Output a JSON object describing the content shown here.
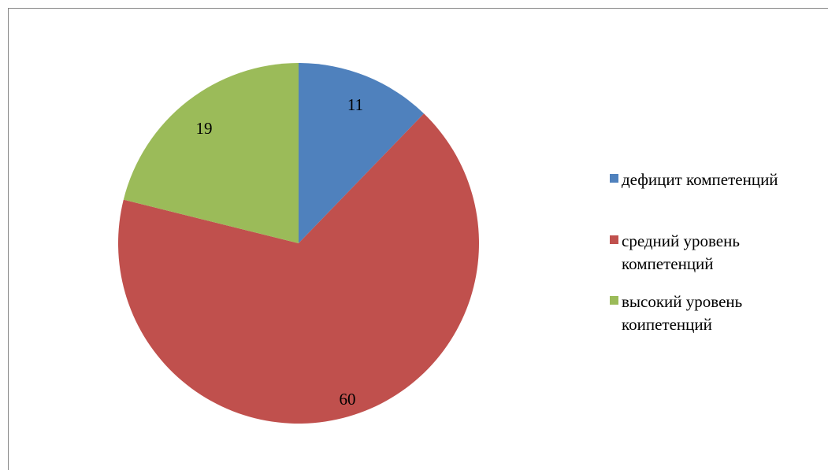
{
  "chart_data": {
    "type": "pie",
    "title": "",
    "start_angle_deg": 0,
    "direction": "clockwise",
    "legend_position": "right",
    "slices": [
      {
        "label": "дефицит компетенций",
        "value": 11,
        "color": "#4F81BD"
      },
      {
        "label": "средний уровень компетенций",
        "value": 60,
        "color": "#C0504D"
      },
      {
        "label": "высокий уровень коипетенций",
        "value": 19,
        "color": "#9BBB59"
      }
    ]
  }
}
